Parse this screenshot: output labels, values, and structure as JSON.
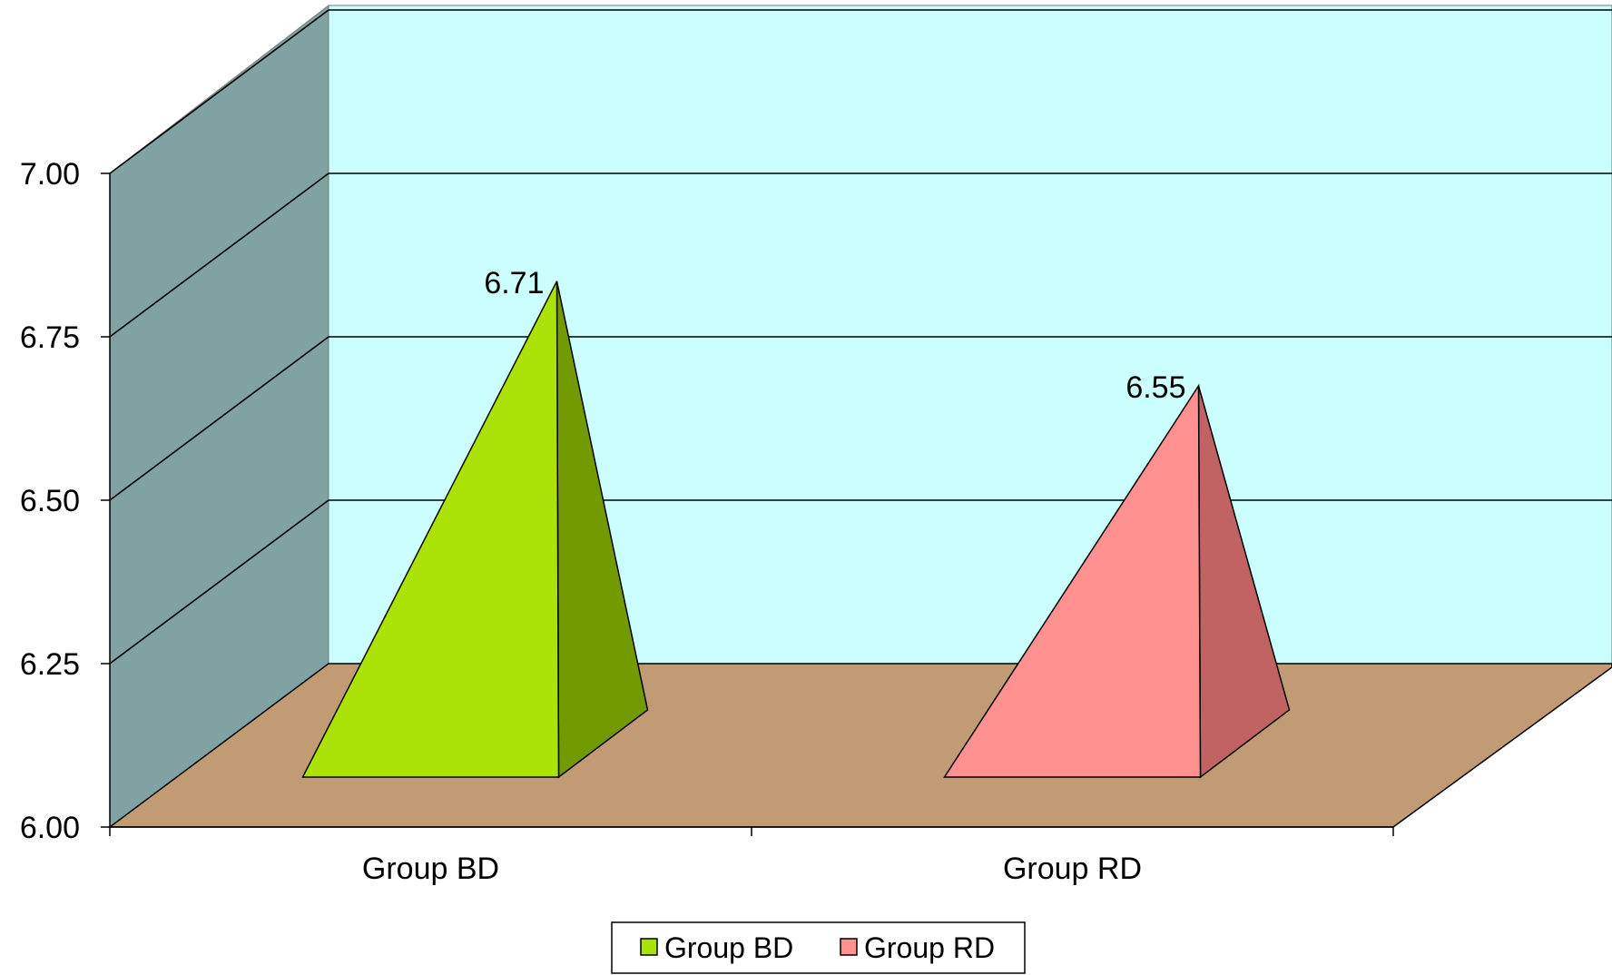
{
  "colors": {
    "back_wall": "#ccffff",
    "side_wall": "#80a2a2",
    "floor": "#c19b74",
    "grid": "#000000"
  },
  "chart_data": {
    "type": "bar",
    "style": "3d-pyramid",
    "categories": [
      "Group BD",
      "Group RD"
    ],
    "series": [
      {
        "name": "Group BD",
        "values": [
          6.71,
          null
        ],
        "color_front": "#abe308",
        "color_side": "#739a00",
        "label": "6.71"
      },
      {
        "name": "Group RD",
        "values": [
          null,
          6.55
        ],
        "color_front": "#ff9191",
        "color_side": "#c26363",
        "label": "6.55"
      }
    ],
    "yticks": [
      "7.00",
      "6.75",
      "6.50",
      "6.25",
      "6.00"
    ],
    "ylim": [
      6.0,
      7.0
    ],
    "grid": true,
    "legend": "bottom"
  }
}
